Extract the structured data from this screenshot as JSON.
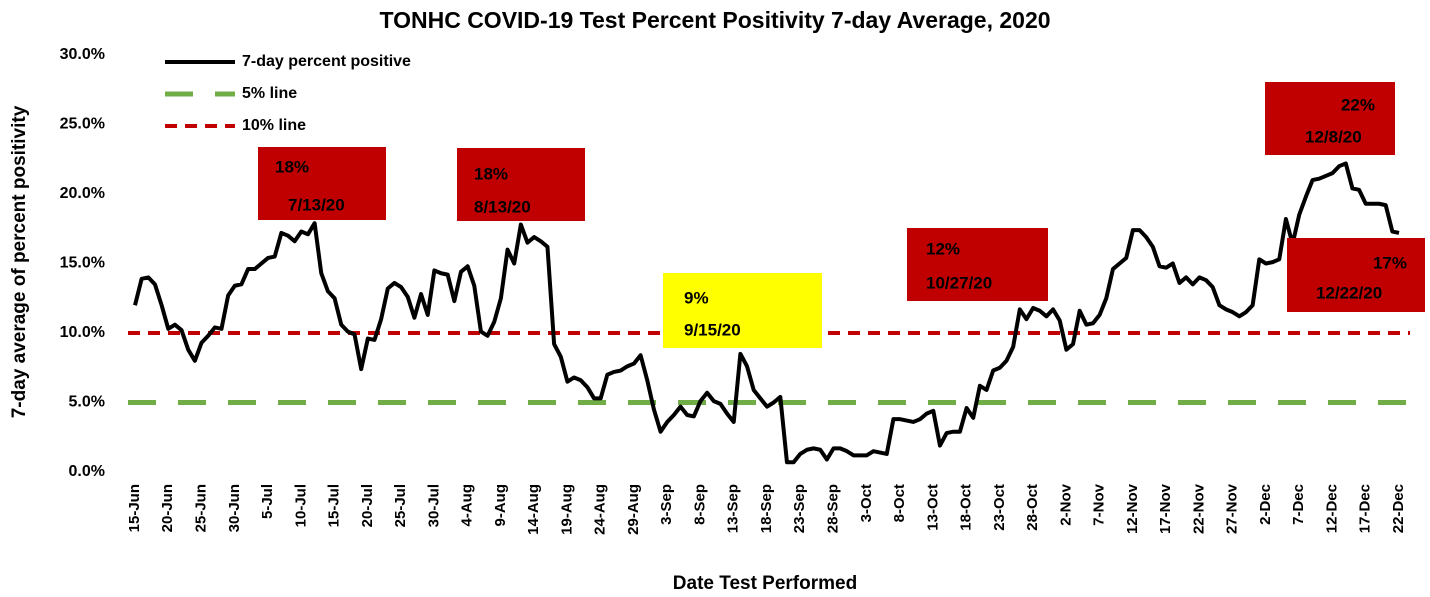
{
  "chart_data": {
    "type": "line",
    "title": "TONHC COVID-19 Test Percent Positivity 7-day Average, 2020",
    "x_label": "Date Test Performed",
    "y_label": "7-day average of percent positivity",
    "categories": [
      "15-Jun",
      null,
      null,
      null,
      null,
      "20-Jun",
      null,
      null,
      null,
      null,
      "25-Jun",
      null,
      null,
      null,
      null,
      "30-Jun",
      null,
      null,
      null,
      null,
      "5-Jul",
      null,
      null,
      null,
      null,
      "10-Jul",
      null,
      null,
      null,
      null,
      "15-Jul",
      null,
      null,
      null,
      null,
      "20-Jul",
      null,
      null,
      null,
      null,
      "25-Jul",
      null,
      null,
      null,
      null,
      "30-Jul",
      null,
      null,
      null,
      null,
      "4-Aug",
      null,
      null,
      null,
      null,
      "9-Aug",
      null,
      null,
      null,
      null,
      "14-Aug",
      null,
      null,
      null,
      null,
      "19-Aug",
      null,
      null,
      null,
      null,
      "24-Aug",
      null,
      null,
      null,
      null,
      "29-Aug",
      null,
      null,
      null,
      null,
      "3-Sep",
      null,
      null,
      null,
      null,
      "8-Sep",
      null,
      null,
      null,
      null,
      "13-Sep",
      null,
      null,
      null,
      null,
      "18-Sep",
      null,
      null,
      null,
      null,
      "23-Sep",
      null,
      null,
      null,
      null,
      "28-Sep",
      null,
      null,
      null,
      null,
      "3-Oct",
      null,
      null,
      null,
      null,
      "8-Oct",
      null,
      null,
      null,
      null,
      "13-Oct",
      null,
      null,
      null,
      null,
      "18-Oct",
      null,
      null,
      null,
      null,
      "23-Oct",
      null,
      null,
      null,
      null,
      "28-Oct",
      null,
      null,
      null,
      null,
      "2-Nov",
      null,
      null,
      null,
      null,
      "7-Nov",
      null,
      null,
      null,
      null,
      "12-Nov",
      null,
      null,
      null,
      null,
      "17-Nov",
      null,
      null,
      null,
      null,
      "22-Nov",
      null,
      null,
      null,
      null,
      "27-Nov",
      null,
      null,
      null,
      null,
      "2-Dec",
      null,
      null,
      null,
      null,
      "7-Dec",
      null,
      null,
      null,
      null,
      "12-Dec",
      null,
      null,
      null,
      null,
      "17-Dec",
      null,
      null,
      null,
      null,
      "22-Dec"
    ],
    "series": [
      {
        "name": "7-day percent positive",
        "color": "#000000",
        "values": [
          12,
          13.9,
          14,
          13.5,
          12,
          10.3,
          10.6,
          10.2,
          8.8,
          8,
          9.3,
          9.8,
          10.4,
          10.3,
          12.7,
          13.4,
          13.5,
          14.6,
          14.6,
          15,
          15.4,
          15.5,
          17.2,
          17,
          16.6,
          17.3,
          17.1,
          17.9,
          14.3,
          13,
          12.5,
          10.6,
          10.1,
          9.9,
          7.4,
          9.6,
          9.5,
          11,
          13.2,
          13.6,
          13.3,
          12.6,
          11.1,
          12.8,
          11.3,
          14.5,
          14.3,
          14.2,
          12.3,
          14.4,
          14.8,
          13.4,
          10.1,
          9.8,
          10.8,
          12.5,
          16,
          15,
          17.8,
          16.5,
          16.9,
          16.6,
          16.2,
          9.2,
          8.3,
          6.5,
          6.8,
          6.6,
          6.1,
          5.3,
          5.3,
          7,
          7.2,
          7.3,
          7.6,
          7.8,
          8.4,
          6.6,
          4.5,
          2.9,
          3.6,
          4.1,
          4.7,
          4.1,
          4,
          5.1,
          5.7,
          5.1,
          4.9,
          4.2,
          3.6,
          8.5,
          7.6,
          5.9,
          5.3,
          4.7,
          5,
          5.4,
          0.7,
          0.7,
          1.3,
          1.6,
          1.7,
          1.6,
          0.9,
          1.7,
          1.7,
          1.5,
          1.2,
          1.2,
          1.2,
          1.5,
          1.4,
          1.3,
          3.8,
          3.8,
          3.7,
          3.6,
          3.8,
          4.2,
          4.4,
          1.9,
          2.8,
          2.9,
          2.9,
          4.6,
          3.9,
          6.2,
          5.9,
          7.3,
          7.5,
          8,
          9,
          11.7,
          11,
          11.8,
          11.6,
          11.2,
          11.7,
          10.9,
          8.8,
          9.2,
          11.6,
          10.6,
          10.7,
          11.3,
          12.5,
          14.6,
          15,
          15.4,
          17.4,
          17.4,
          16.9,
          16.2,
          14.8,
          14.7,
          15,
          13.6,
          14,
          13.5,
          14,
          13.8,
          13.3,
          12,
          11.7,
          11.5,
          11.2,
          11.5,
          12,
          15.3,
          15,
          15.1,
          15.3,
          18.2,
          16.4,
          18.5,
          19.8,
          21,
          21.1,
          21.3,
          21.5,
          22,
          22.2,
          20.4,
          20.3,
          19.3,
          19.3,
          19.3,
          19.2,
          17.3,
          17.2
        ]
      }
    ],
    "reference_lines": [
      {
        "name": "5% line",
        "value": 5,
        "color": "#70ad47",
        "dash": "28 22"
      },
      {
        "name": "10% line",
        "value": 10,
        "color": "#c00000",
        "dash": "12 8"
      }
    ],
    "ylim": [
      0,
      30
    ],
    "yticks": [
      {
        "value": 0,
        "label": "0.0%"
      },
      {
        "value": 5,
        "label": "5.0%"
      },
      {
        "value": 10,
        "label": "10.0%"
      },
      {
        "value": 15,
        "label": "15.0%"
      },
      {
        "value": 20,
        "label": "20.0%"
      },
      {
        "value": 25,
        "label": "25.0%"
      },
      {
        "value": 30,
        "label": "30.0%"
      }
    ],
    "legend": "top-left",
    "annotations": [
      {
        "lines": [
          "18%",
          "7/13/20"
        ],
        "color": "#c00000"
      },
      {
        "lines": [
          "18%",
          "8/13/20"
        ],
        "color": "#c00000"
      },
      {
        "lines": [
          "9%",
          "9/15/20"
        ],
        "color": "#ffff00"
      },
      {
        "lines": [
          "12%",
          "10/27/20"
        ],
        "color": "#c00000"
      },
      {
        "lines": [
          "22%",
          "12/8/20"
        ],
        "color": "#c00000"
      },
      {
        "lines": [
          "17%",
          "12/22/20"
        ],
        "color": "#c00000"
      }
    ]
  }
}
